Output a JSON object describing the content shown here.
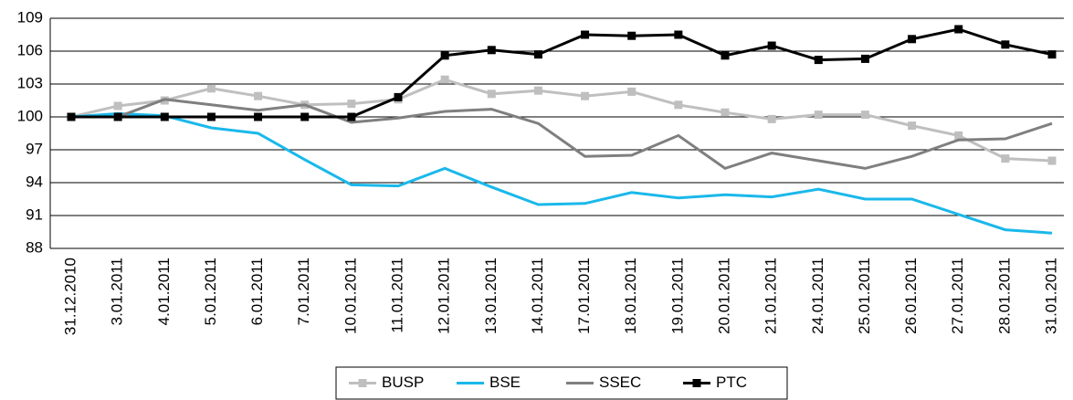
{
  "chart_data": {
    "type": "line",
    "categories": [
      "31.12.2010",
      "3.01.2011",
      "4.01.2011",
      "5.01.2011",
      "6.01.2011",
      "7.01.2011",
      "10.01.2011",
      "11.01.2011",
      "12.01.2011",
      "13.01.2011",
      "14.01.2011",
      "17.01.2011",
      "18.01.2011",
      "19.01.2011",
      "20.01.2011",
      "21.01.2011",
      "24.01.2011",
      "25.01.2011",
      "26.01.2011",
      "27.01.2011",
      "28.01.2011",
      "31.01.2011"
    ],
    "series": [
      {
        "name": "BUSP",
        "color": "#bfbfbf",
        "marker": "square",
        "values": [
          100,
          101,
          101.5,
          102.6,
          101.9,
          101.1,
          101.2,
          101.6,
          103.4,
          102.1,
          102.4,
          101.9,
          102.3,
          101.1,
          100.4,
          99.8,
          100.2,
          100.2,
          99.2,
          98.3,
          96.2,
          96.0
        ]
      },
      {
        "name": "BSE",
        "color": "#1ab8ea",
        "marker": "none",
        "values": [
          100,
          100.3,
          100.1,
          99.0,
          98.5,
          96.1,
          93.8,
          93.7,
          95.3,
          93.6,
          92.0,
          92.1,
          93.1,
          92.6,
          92.9,
          92.7,
          93.4,
          92.5,
          92.5,
          91.1,
          89.7,
          89.4
        ]
      },
      {
        "name": "SSEC",
        "color": "#7f7f7f",
        "marker": "none",
        "values": [
          100,
          100,
          101.6,
          101.1,
          100.6,
          101.1,
          99.5,
          99.9,
          100.5,
          100.7,
          99.4,
          96.4,
          96.5,
          98.3,
          95.3,
          96.7,
          96.0,
          95.3,
          96.4,
          97.9,
          98.0,
          99.4
        ]
      },
      {
        "name": "PTC",
        "color": "#000000",
        "marker": "square",
        "values": [
          100,
          100,
          100,
          100,
          100,
          100,
          100,
          101.8,
          105.6,
          106.1,
          105.7,
          107.5,
          107.4,
          107.5,
          105.6,
          106.5,
          105.2,
          105.3,
          107.1,
          108.0,
          106.6,
          105.7
        ]
      }
    ],
    "ylim": [
      88,
      109
    ],
    "yticks": [
      88,
      91,
      94,
      97,
      100,
      103,
      106,
      109
    ],
    "grid": true,
    "legend": "bottom"
  }
}
